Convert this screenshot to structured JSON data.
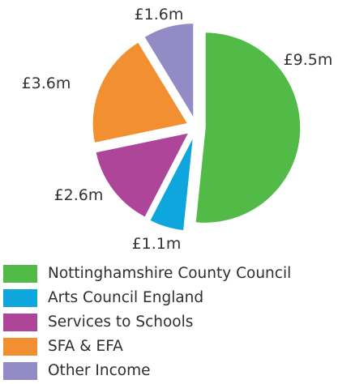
{
  "chart_data": {
    "type": "pie",
    "title": "",
    "categories": [
      "Nottinghamshire County Council",
      "Arts Council England",
      "Services to Schools",
      "SFA & EFA",
      "Other Income"
    ],
    "values": [
      9.5,
      1.1,
      2.6,
      3.6,
      1.6
    ],
    "data_labels": [
      "£9.5m",
      "£1.1m",
      "£2.6m",
      "£3.6m",
      "£1.6m"
    ],
    "colors": [
      "#52bb48",
      "#0fa5dd",
      "#ad4598",
      "#f18f31",
      "#938bc6"
    ],
    "legend_placement": "bottom",
    "exploded": true
  }
}
